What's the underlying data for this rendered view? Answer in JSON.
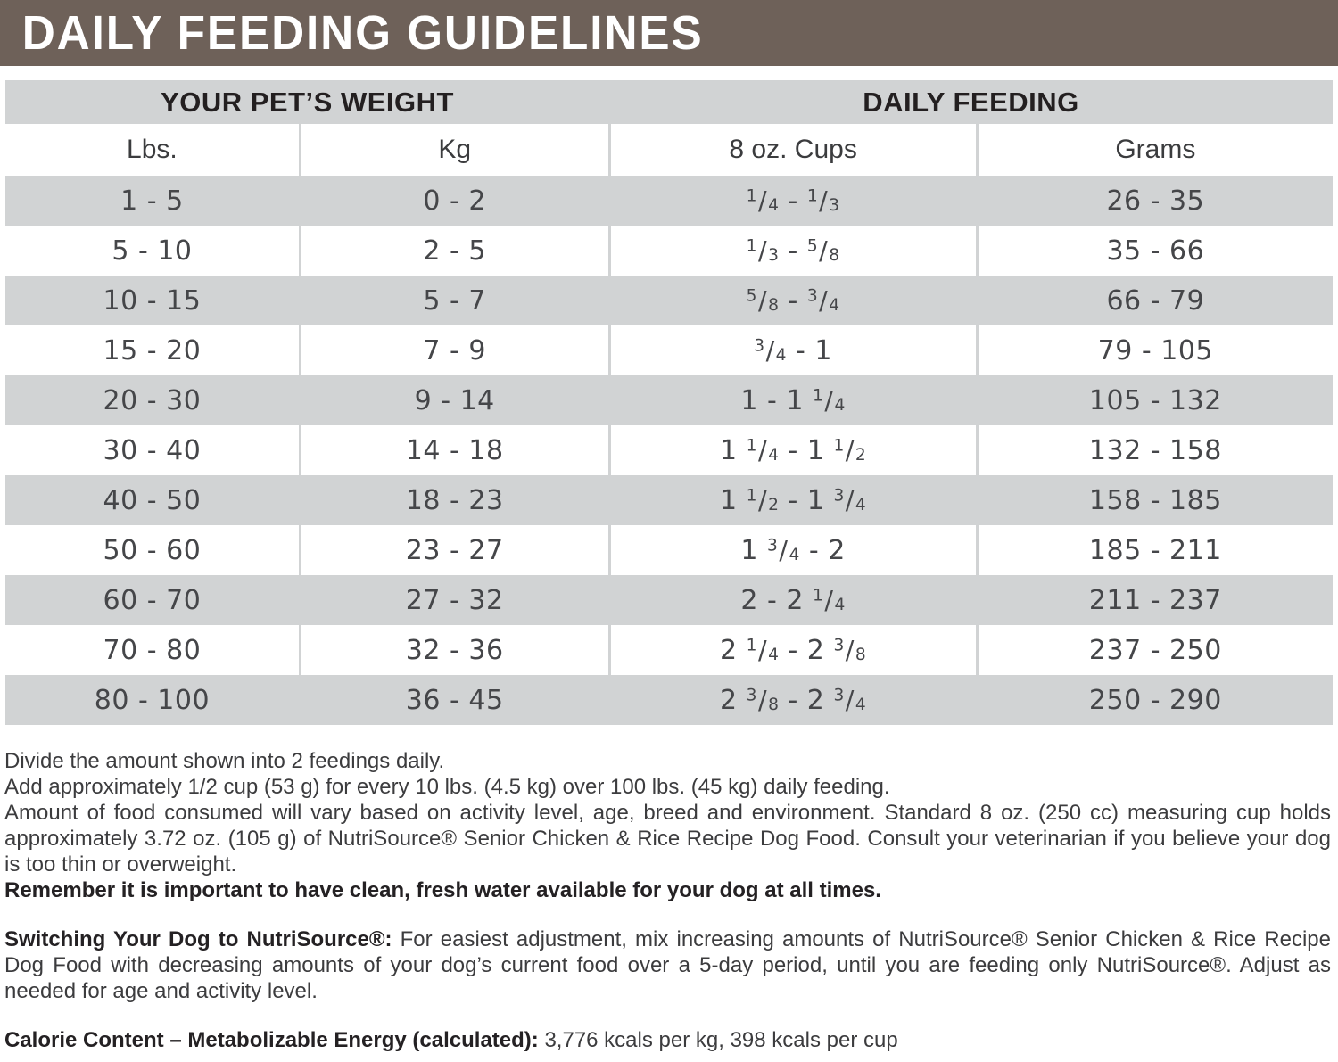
{
  "banner": {
    "title": "DAILY FEEDING GUIDELINES"
  },
  "colors": {
    "banner_bg": "#6e6159",
    "row_gray": "#d1d3d4"
  },
  "table": {
    "group_headers": [
      "YOUR PET’S WEIGHT",
      "DAILY FEEDING"
    ],
    "columns": [
      "Lbs.",
      "Kg",
      "8 oz. Cups",
      "Grams"
    ],
    "rows": [
      [
        "1 - 5",
        "0 - 2",
        "1/4 - 1/3",
        "26 - 35"
      ],
      [
        "5 - 10",
        "2 - 5",
        "1/3 - 5/8",
        "35 - 66"
      ],
      [
        "10 - 15",
        "5 - 7",
        "5/8 - 3/4",
        "66 - 79"
      ],
      [
        "15 - 20",
        "7 - 9",
        "3/4 - 1",
        "79 - 105"
      ],
      [
        "20 - 30",
        "9 - 14",
        "1 - 1 1/4",
        "105 - 132"
      ],
      [
        "30 - 40",
        "14 - 18",
        "1 1/4 - 1 1/2",
        "132 - 158"
      ],
      [
        "40 - 50",
        "18 - 23",
        "1 1/2 - 1 3/4",
        "158 - 185"
      ],
      [
        "50 - 60",
        "23 - 27",
        "1 3/4 - 2",
        "185 - 211"
      ],
      [
        "60 - 70",
        "27 - 32",
        "2 - 2 1/4",
        "211 - 237"
      ],
      [
        "70 - 80",
        "32 - 36",
        "2 1/4 - 2 3/8",
        "237 - 250"
      ],
      [
        "80 - 100",
        "36 - 45",
        "2 3/8 - 2 3/4",
        "250 - 290"
      ]
    ]
  },
  "notes": {
    "paragraphs": [
      {
        "segments": [
          {
            "t": "Divide the amount shown into 2 feedings daily.",
            "b": false
          }
        ]
      },
      {
        "segments": [
          {
            "t": "Add approximately 1/2 cup (53 g) for every 10 lbs. (4.5 kg) over 100 lbs. (45 kg) daily feeding.",
            "b": false
          }
        ]
      },
      {
        "justify": true,
        "segments": [
          {
            "t": "Amount of food consumed will vary based on activity level, age, breed and environment. Standard 8 oz. (250 cc) measuring cup holds approximately 3.72 oz. (105 g) of NutriSource® Senior Chicken & Rice Recipe Dog Food. Consult your veterinarian if you believe your dog is too thin or overweight.",
            "b": false
          }
        ]
      },
      {
        "segments": [
          {
            "t": "Remember it is important to have clean, fresh water available for your dog at all times.",
            "b": true
          }
        ]
      },
      {
        "gap": true,
        "justify": true,
        "segments": [
          {
            "t": "Switching Your Dog to NutriSource®: ",
            "b": true
          },
          {
            "t": "For easiest adjustment, mix increasing amounts of NutriSource® Senior Chicken & Rice Recipe Dog Food with decreasing amounts of your dog’s current food over a 5-day period, until you are feeding only NutriSource®. Adjust as needed for age and activity level.",
            "b": false
          }
        ]
      },
      {
        "gap": true,
        "segments": [
          {
            "t": "Calorie Content – Metabolizable Energy (calculated): ",
            "b": true
          },
          {
            "t": "3,776 kcals per kg, 398 kcals per cup",
            "b": false
          }
        ]
      }
    ]
  }
}
